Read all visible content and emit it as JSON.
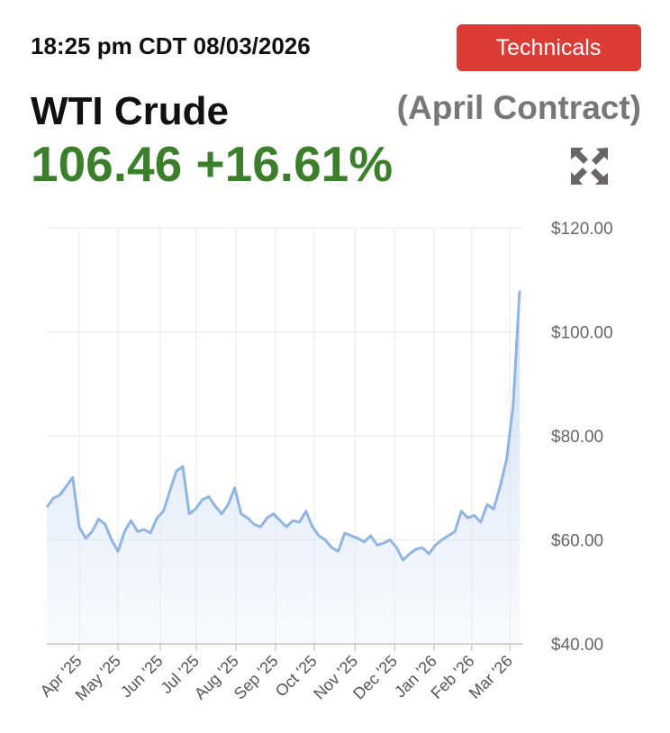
{
  "header": {
    "timestamp": "18:25 pm CDT 08/03/2026",
    "button": "Technicals",
    "name": "WTI Crude",
    "contract": "(April Contract)",
    "price": "106.46",
    "change": "+16.61%"
  },
  "chart_data": {
    "type": "line",
    "series": [
      {
        "color": "#8fb5e3",
        "values": [
          66.3,
          68,
          68.6,
          70.3,
          72,
          62.5,
          60.3,
          61.6,
          64,
          63,
          60,
          57.8,
          61.6,
          63.7,
          61.6,
          62,
          61.3,
          64.2,
          65.5,
          69.4,
          73.2,
          74.1,
          65,
          66,
          67.7,
          68.3,
          66.5,
          65,
          66.8,
          70,
          65,
          64.2,
          63,
          62.5,
          64.2,
          65,
          63.7,
          62.5,
          63.7,
          63.4,
          65.5,
          62.5,
          60.8,
          60,
          58.5,
          57.8,
          61.3,
          60.8,
          60.3,
          59.6,
          60.8,
          59,
          59.4,
          60,
          58.5,
          56.1,
          57.3,
          58.2,
          58.5,
          57.3,
          59,
          60,
          60.8,
          61.6,
          65.5,
          64.2,
          64.7,
          63.4,
          66.8,
          65.9,
          70.3,
          75.5,
          85.9,
          107.9
        ]
      }
    ],
    "xlim": [
      0,
      73
    ],
    "xticks": [
      {
        "value": 5,
        "label": "Apr '25"
      },
      {
        "value": 11,
        "label": "May '25"
      },
      {
        "value": 17.5,
        "label": "Jun '25"
      },
      {
        "value": 23.1,
        "label": "Jul '25"
      },
      {
        "value": 29.2,
        "label": "Aug '25"
      },
      {
        "value": 35.3,
        "label": "Sep '25"
      },
      {
        "value": 41.3,
        "label": "Oct '25"
      },
      {
        "value": 47.6,
        "label": "Nov '25"
      },
      {
        "value": 53.7,
        "label": "Dec '25"
      },
      {
        "value": 59.8,
        "label": "Jan '26"
      },
      {
        "value": 65.6,
        "label": "Feb '26"
      },
      {
        "value": 71.5,
        "label": "Mar '26"
      }
    ],
    "ylim": [
      40,
      120
    ],
    "yticks": [
      {
        "value": 40,
        "label": "$40.00"
      },
      {
        "value": 60,
        "label": "$60.00"
      },
      {
        "value": 80,
        "label": "$80.00"
      },
      {
        "value": 100,
        "label": "$100.00"
      },
      {
        "value": 120,
        "label": "$120.00"
      }
    ],
    "grid": true
  }
}
